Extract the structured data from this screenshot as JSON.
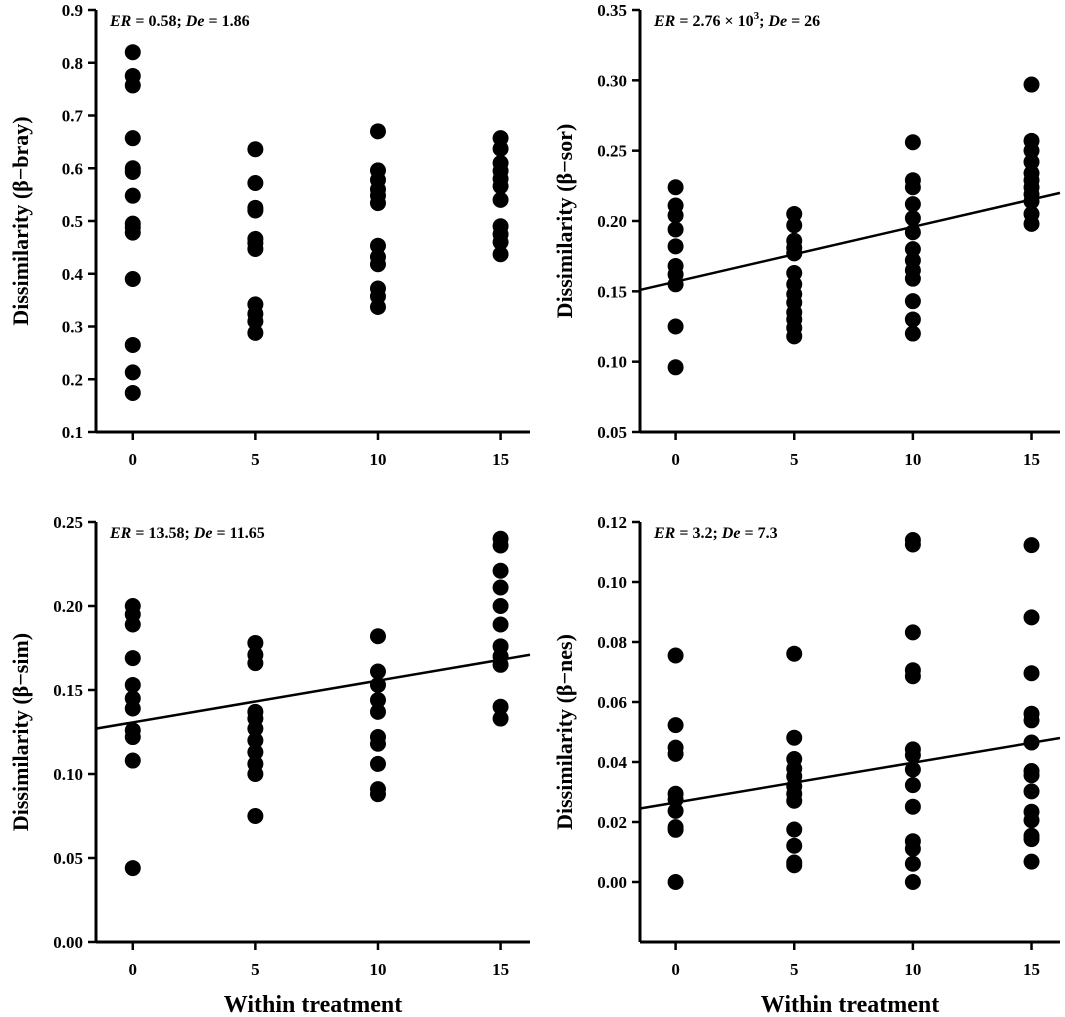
{
  "colors": {
    "ink": "#000000",
    "background": "#ffffff"
  },
  "chart_data": [
    {
      "type": "scatter",
      "ylabel": "Dissimilarity (β−bray)",
      "xlabel": "",
      "annotation": {
        "ER_label": "ER",
        "ER_value": " = 0.58; ",
        "De_label": "De",
        "De_value": " = 1.86"
      },
      "xlim": [
        -1.5,
        16.2
      ],
      "ylim": [
        0.1,
        0.9
      ],
      "xticks": [
        0,
        5,
        10,
        15
      ],
      "yticks": [
        "0.1",
        "0.2",
        "0.3",
        "0.4",
        "0.5",
        "0.6",
        "0.7",
        "0.8",
        "0.9"
      ],
      "series": [
        {
          "x": 0,
          "values": [
            0.82,
            0.775,
            0.757,
            0.657,
            0.6,
            0.593,
            0.548,
            0.495,
            0.488,
            0.478,
            0.39,
            0.265,
            0.213,
            0.174
          ]
        },
        {
          "x": 5,
          "values": [
            0.636,
            0.572,
            0.525,
            0.52,
            0.466,
            0.458,
            0.447,
            0.342,
            0.324,
            0.31,
            0.288
          ]
        },
        {
          "x": 10,
          "values": [
            0.67,
            0.596,
            0.578,
            0.56,
            0.548,
            0.534,
            0.453,
            0.432,
            0.418,
            0.372,
            0.357,
            0.337
          ]
        },
        {
          "x": 15,
          "values": [
            0.657,
            0.637,
            0.61,
            0.595,
            0.58,
            0.566,
            0.54,
            0.49,
            0.475,
            0.46,
            0.437
          ]
        }
      ],
      "fit_line": null
    },
    {
      "type": "scatter",
      "ylabel": "Dissimilarity (β−sor)",
      "xlabel": "",
      "annotation": {
        "ER_label": "ER",
        "ER_value": " = 2.76 × 10",
        "ER_exponent": "3",
        "ER_suffix": "; ",
        "De_label": "De",
        "De_value": " = 26"
      },
      "xlim": [
        -1.5,
        16.2
      ],
      "ylim": [
        0.05,
        0.35
      ],
      "xticks": [
        0,
        5,
        10,
        15
      ],
      "yticks": [
        "0.05",
        "0.10",
        "0.15",
        "0.20",
        "0.25",
        "0.30",
        "0.35"
      ],
      "series": [
        {
          "x": 0,
          "values": [
            0.224,
            0.211,
            0.204,
            0.194,
            0.182,
            0.168,
            0.162,
            0.155,
            0.125,
            0.096
          ]
        },
        {
          "x": 5,
          "values": [
            0.205,
            0.197,
            0.186,
            0.181,
            0.177,
            0.163,
            0.155,
            0.148,
            0.142,
            0.135,
            0.13,
            0.124,
            0.118
          ]
        },
        {
          "x": 10,
          "values": [
            0.256,
            0.229,
            0.224,
            0.212,
            0.202,
            0.192,
            0.18,
            0.172,
            0.165,
            0.159,
            0.143,
            0.13,
            0.12
          ]
        },
        {
          "x": 15,
          "values": [
            0.297,
            0.257,
            0.25,
            0.242,
            0.234,
            0.229,
            0.224,
            0.219,
            0.214,
            0.205,
            0.198
          ]
        }
      ],
      "fit_line": {
        "x": [
          -1.5,
          16.2
        ],
        "y": [
          0.151,
          0.22
        ]
      }
    },
    {
      "type": "scatter",
      "ylabel": "Dissimilarity (β−sim)",
      "xlabel": "Within treatment",
      "annotation": {
        "ER_label": "ER",
        "ER_value": " = 13.58; ",
        "De_label": "De",
        "De_value": " = 11.65"
      },
      "xlim": [
        -1.5,
        16.2
      ],
      "ylim": [
        0.0,
        0.25
      ],
      "xticks": [
        0,
        5,
        10,
        15
      ],
      "yticks": [
        "0.00",
        "0.05",
        "0.10",
        "0.15",
        "0.20",
        "0.25"
      ],
      "series": [
        {
          "x": 0,
          "values": [
            0.2,
            0.195,
            0.189,
            0.169,
            0.153,
            0.145,
            0.139,
            0.126,
            0.122,
            0.108,
            0.044
          ]
        },
        {
          "x": 5,
          "values": [
            0.178,
            0.171,
            0.166,
            0.137,
            0.133,
            0.127,
            0.12,
            0.113,
            0.106,
            0.1,
            0.075
          ]
        },
        {
          "x": 10,
          "values": [
            0.182,
            0.161,
            0.153,
            0.144,
            0.137,
            0.122,
            0.118,
            0.106,
            0.091,
            0.088
          ]
        },
        {
          "x": 15,
          "values": [
            0.24,
            0.236,
            0.221,
            0.211,
            0.2,
            0.189,
            0.176,
            0.17,
            0.165,
            0.14,
            0.133
          ]
        }
      ],
      "fit_line": {
        "x": [
          -1.5,
          16.2
        ],
        "y": [
          0.127,
          0.171
        ]
      }
    },
    {
      "type": "scatter",
      "ylabel": "Dissimilarity (β−nes)",
      "xlabel": "Within treatment",
      "annotation": {
        "ER_label": "ER",
        "ER_value": " = 3.2; ",
        "De_label": "De",
        "De_value": " = 7.3"
      },
      "xlim": [
        -1.5,
        16.2
      ],
      "ylim": [
        -0.02,
        0.12
      ],
      "xticks": [
        0,
        5,
        10,
        15
      ],
      "yticks": [
        "0.00",
        "0.02",
        "0.04",
        "0.06",
        "0.08",
        "0.10",
        "0.12"
      ],
      "series": [
        {
          "x": 0,
          "values": [
            0.0755,
            0.0523,
            0.0448,
            0.0427,
            0.0294,
            0.0275,
            0.0237,
            0.0183,
            0.0174,
            0.0
          ]
        },
        {
          "x": 5,
          "values": [
            0.0761,
            0.0481,
            0.041,
            0.0378,
            0.0352,
            0.0319,
            0.0294,
            0.0271,
            0.0175,
            0.0121,
            0.0065,
            0.0056
          ]
        },
        {
          "x": 10,
          "values": [
            0.114,
            0.1125,
            0.0832,
            0.0706,
            0.0686,
            0.0442,
            0.0423,
            0.0375,
            0.0323,
            0.0251,
            0.0136,
            0.0111,
            0.0061,
            0.0
          ]
        },
        {
          "x": 15,
          "values": [
            0.1123,
            0.0882,
            0.0696,
            0.0561,
            0.0539,
            0.0465,
            0.037,
            0.0356,
            0.0302,
            0.0234,
            0.0206,
            0.0154,
            0.0143,
            0.0068
          ]
        }
      ],
      "fit_line": {
        "x": [
          -1.5,
          16.2
        ],
        "y": [
          0.0245,
          0.048
        ]
      }
    }
  ]
}
